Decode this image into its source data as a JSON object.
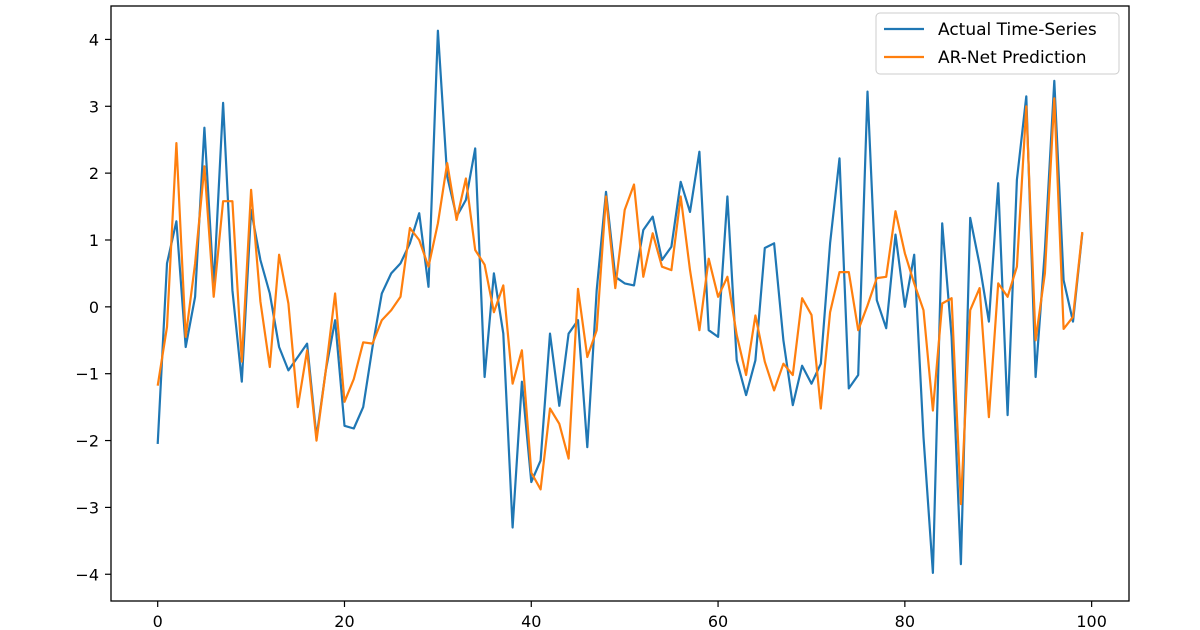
{
  "chart_data": {
    "type": "line",
    "title": "",
    "xlabel": "",
    "ylabel": "",
    "xlim": [
      -5,
      104
    ],
    "ylim": [
      -4.4,
      4.5
    ],
    "xticks": [
      0,
      20,
      40,
      60,
      80,
      100
    ],
    "yticks": [
      -4,
      -3,
      -2,
      -1,
      0,
      1,
      2,
      3,
      4
    ],
    "xtick_labels": [
      "0",
      "20",
      "40",
      "60",
      "80",
      "100"
    ],
    "ytick_labels": [
      "−4",
      "−3",
      "−2",
      "−1",
      "0",
      "1",
      "2",
      "3",
      "4"
    ],
    "grid": false,
    "legend_position": "top-right",
    "x": [
      0,
      1,
      2,
      3,
      4,
      5,
      6,
      7,
      8,
      9,
      10,
      11,
      12,
      13,
      14,
      15,
      16,
      17,
      18,
      19,
      20,
      21,
      22,
      23,
      24,
      25,
      26,
      27,
      28,
      29,
      30,
      31,
      32,
      33,
      34,
      35,
      36,
      37,
      38,
      39,
      40,
      41,
      42,
      43,
      44,
      45,
      46,
      47,
      48,
      49,
      50,
      51,
      52,
      53,
      54,
      55,
      56,
      57,
      58,
      59,
      60,
      61,
      62,
      63,
      64,
      65,
      66,
      67,
      68,
      69,
      70,
      71,
      72,
      73,
      74,
      75,
      76,
      77,
      78,
      79,
      80,
      81,
      82,
      83,
      84,
      85,
      86,
      87,
      88,
      89,
      90,
      91,
      92,
      93,
      94,
      95,
      96,
      97,
      98,
      99
    ],
    "series": [
      {
        "name": "Actual Time-Series",
        "color": "#1f77b4",
        "values": [
          -2.05,
          0.65,
          1.28,
          -0.6,
          0.15,
          2.68,
          0.3,
          3.05,
          0.25,
          -1.12,
          1.45,
          0.7,
          0.2,
          -0.6,
          -0.95,
          -0.75,
          -0.55,
          -1.95,
          -0.95,
          -0.2,
          -1.78,
          -1.82,
          -1.5,
          -0.6,
          0.2,
          0.5,
          0.65,
          0.95,
          1.4,
          0.3,
          4.13,
          1.95,
          1.35,
          1.6,
          2.37,
          -1.05,
          0.5,
          -0.4,
          -3.3,
          -1.12,
          -2.62,
          -2.3,
          -0.4,
          -1.48,
          -0.4,
          -0.2,
          -2.1,
          0.25,
          1.72,
          0.45,
          0.35,
          0.32,
          1.15,
          1.35,
          0.7,
          0.9,
          1.87,
          1.42,
          2.32,
          -0.35,
          -0.45,
          1.65,
          -0.8,
          -1.32,
          -0.8,
          0.88,
          0.95,
          -0.5,
          -1.47,
          -0.88,
          -1.15,
          -0.85,
          0.95,
          2.22,
          -1.22,
          -1.02,
          3.22,
          0.1,
          -0.32,
          1.08,
          0.0,
          0.78,
          -1.95,
          -3.98,
          1.25,
          -0.45,
          -3.85,
          1.33,
          0.63,
          -0.22,
          1.85,
          -1.62,
          1.9,
          3.15,
          -1.05,
          0.85,
          3.38,
          0.4,
          -0.22,
          1.1
        ]
      },
      {
        "name": "AR-Net Prediction",
        "color": "#ff7f0e",
        "values": [
          -1.18,
          -0.3,
          2.45,
          -0.45,
          0.65,
          2.1,
          0.15,
          1.58,
          1.58,
          -0.82,
          1.75,
          0.08,
          -0.9,
          0.78,
          0.05,
          -1.5,
          -0.65,
          -2.0,
          -0.95,
          0.2,
          -1.42,
          -1.08,
          -0.53,
          -0.55,
          -0.2,
          -0.05,
          0.15,
          1.18,
          1.0,
          0.6,
          1.25,
          2.15,
          1.3,
          1.92,
          0.85,
          0.63,
          -0.08,
          0.32,
          -1.15,
          -0.65,
          -2.48,
          -2.73,
          -1.52,
          -1.75,
          -2.27,
          0.27,
          -0.75,
          -0.35,
          1.65,
          0.28,
          1.45,
          1.83,
          0.45,
          1.1,
          0.6,
          0.55,
          1.65,
          0.55,
          -0.35,
          0.72,
          0.15,
          0.45,
          -0.42,
          -1.02,
          -0.13,
          -0.82,
          -1.25,
          -0.85,
          -1.02,
          0.13,
          -0.12,
          -1.52,
          -0.08,
          0.52,
          0.52,
          -0.35,
          0.02,
          0.43,
          0.45,
          1.43,
          0.8,
          0.35,
          -0.05,
          -1.55,
          0.05,
          0.13,
          -2.95,
          -0.05,
          0.28,
          -1.65,
          0.35,
          0.15,
          0.6,
          3.0,
          -0.5,
          0.5,
          3.12,
          -0.33,
          -0.15,
          1.12
        ]
      }
    ]
  }
}
